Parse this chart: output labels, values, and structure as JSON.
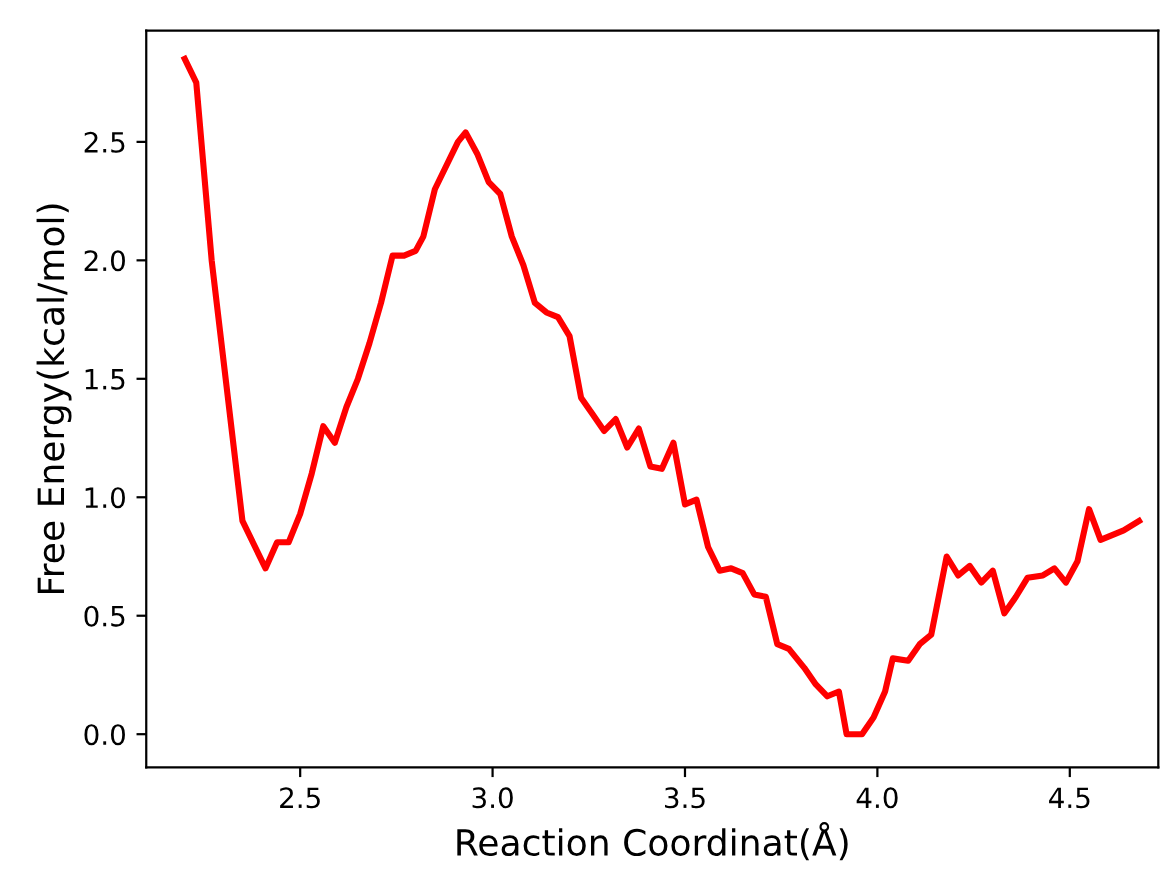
{
  "chart_data": {
    "type": "line",
    "xlabel": "Reaction Coordinat(Å)",
    "ylabel": "Free Energy(kcal/mol)",
    "xlim": [
      2.1,
      4.73
    ],
    "ylim": [
      -0.14,
      2.97
    ],
    "xticks": [
      {
        "value": 2.5,
        "label": "2.5"
      },
      {
        "value": 3.0,
        "label": "3.0"
      },
      {
        "value": 3.5,
        "label": "3.5"
      },
      {
        "value": 4.0,
        "label": "4.0"
      },
      {
        "value": 4.5,
        "label": "4.5"
      }
    ],
    "yticks": [
      {
        "value": 0,
        "label": "0.0"
      },
      {
        "value": 0.5,
        "label": "0.5"
      },
      {
        "value": 1.0,
        "label": "1.0"
      },
      {
        "value": 1.5,
        "label": "1.5"
      },
      {
        "value": 2.0,
        "label": "2.0"
      },
      {
        "value": 2.5,
        "label": "2.5"
      }
    ],
    "grid": false,
    "legend": false,
    "marker": "none",
    "line_style": "solid",
    "series": [
      {
        "color": "#ff0000",
        "x": [
          2.2,
          2.23,
          2.27,
          2.35,
          2.41,
          2.44,
          2.47,
          2.5,
          2.53,
          2.56,
          2.59,
          2.62,
          2.65,
          2.68,
          2.71,
          2.74,
          2.77,
          2.8,
          2.82,
          2.85,
          2.91,
          2.93,
          2.96,
          2.99,
          3.02,
          3.05,
          3.08,
          3.11,
          3.14,
          3.17,
          3.2,
          3.23,
          3.26,
          3.29,
          3.32,
          3.35,
          3.38,
          3.41,
          3.44,
          3.47,
          3.5,
          3.53,
          3.56,
          3.59,
          3.62,
          3.65,
          3.68,
          3.71,
          3.74,
          3.77,
          3.81,
          3.84,
          3.87,
          3.9,
          3.92,
          3.96,
          3.99,
          4.02,
          4.04,
          4.08,
          4.11,
          4.14,
          4.18,
          4.21,
          4.24,
          4.27,
          4.3,
          4.33,
          4.36,
          4.39,
          4.43,
          4.46,
          4.49,
          4.52,
          4.55,
          4.58,
          4.61,
          4.64,
          4.68
        ],
        "values": [
          2.85,
          2.75,
          2.0,
          0.9,
          0.7,
          0.81,
          0.81,
          0.93,
          1.1,
          1.3,
          1.23,
          1.38,
          1.5,
          1.65,
          1.82,
          2.02,
          2.02,
          2.04,
          2.1,
          2.3,
          2.5,
          2.54,
          2.45,
          2.33,
          2.28,
          2.1,
          1.98,
          1.82,
          1.78,
          1.76,
          1.68,
          1.42,
          1.35,
          1.28,
          1.33,
          1.21,
          1.29,
          1.13,
          1.12,
          1.23,
          0.97,
          0.99,
          0.79,
          0.69,
          0.7,
          0.68,
          0.59,
          0.58,
          0.38,
          0.36,
          0.28,
          0.21,
          0.16,
          0.18,
          0.0,
          0.0,
          0.07,
          0.18,
          0.32,
          0.31,
          0.38,
          0.42,
          0.75,
          0.67,
          0.71,
          0.64,
          0.69,
          0.51,
          0.58,
          0.66,
          0.67,
          0.7,
          0.64,
          0.73,
          0.95,
          0.82,
          0.84,
          0.86,
          0.9
        ]
      }
    ]
  }
}
